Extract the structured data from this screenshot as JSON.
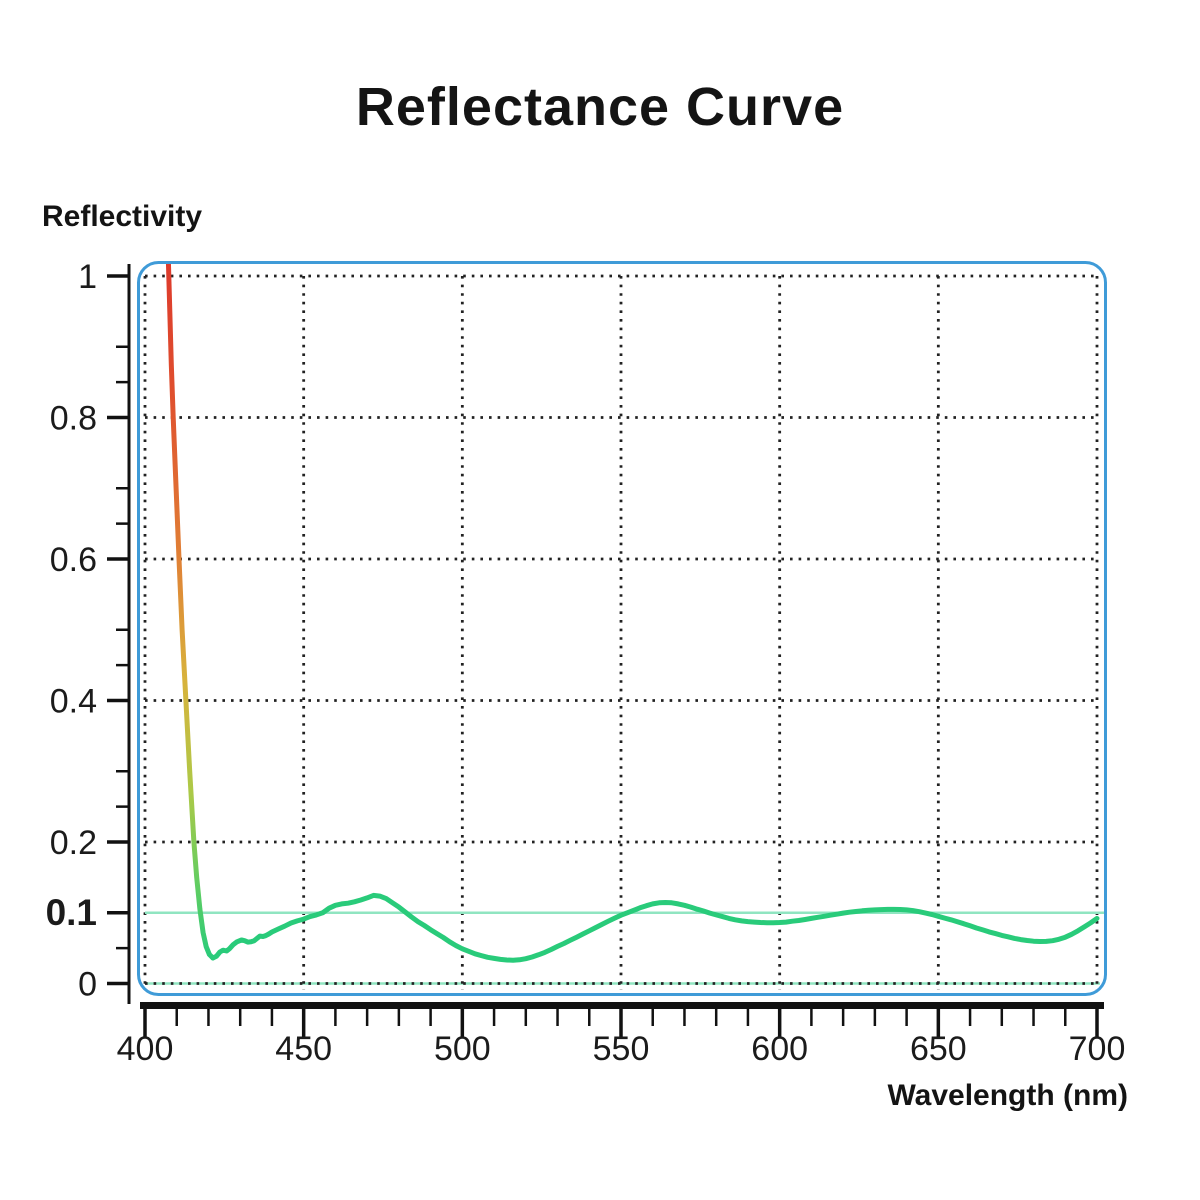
{
  "title": "Reflectance Curve",
  "y_axis_label": "Reflectivity",
  "x_axis_label": "Wavelength (nm)",
  "colors": {
    "border_blue": "#3f9bd8",
    "curve_green": "#29cb7a",
    "gradient_red": "#dd3a2c",
    "gradient_red_orange": "#df4e2e",
    "gradient_orange": "#e07f35",
    "gradient_yellow": "#d8b23c",
    "gradient_yellow_green": "#adc947",
    "gradient_light_green": "#5ecd62",
    "reference_line_green": "#90e5c1",
    "highlight_label_green": "#2dcf80",
    "grid_dot_black": "#222222",
    "axis_black": "#111111",
    "text_black": "#1b1b1b"
  },
  "chart_data": {
    "type": "line",
    "title": "Reflectance Curve",
    "xlabel": "Wavelength (nm)",
    "ylabel": "Reflectivity",
    "xlim": [
      400,
      700
    ],
    "ylim": [
      0,
      1
    ],
    "grid": "dotted",
    "x_ticks_major": [
      400,
      450,
      500,
      550,
      600,
      650,
      700
    ],
    "x_minor_step": 10,
    "y_ticks": [
      {
        "v": 0,
        "label": "0"
      },
      {
        "v": 0.1,
        "label": "0.1",
        "highlight": true
      },
      {
        "v": 0.2,
        "label": "0.2"
      },
      {
        "v": 0.4,
        "label": "0.4"
      },
      {
        "v": 0.6,
        "label": "0.6"
      },
      {
        "v": 0.8,
        "label": "0.8"
      },
      {
        "v": 1,
        "label": "1"
      }
    ],
    "y_gridlines": [
      0,
      0.2,
      0.4,
      0.6,
      0.8,
      1
    ],
    "y_minor_step": 0.05,
    "reference_lines": [
      {
        "y": 0.1
      },
      {
        "y": 0
      }
    ],
    "gradient_until_nm": 421.4,
    "series": [
      {
        "name": "reflectance",
        "points": [
          [
            407.3,
            1.03
          ],
          [
            407.8,
            0.95
          ],
          [
            408.3,
            0.875
          ],
          [
            408.9,
            0.8
          ],
          [
            409.8,
            0.7
          ],
          [
            410.7,
            0.6
          ],
          [
            411.7,
            0.5
          ],
          [
            412.9,
            0.4
          ],
          [
            414.1,
            0.3
          ],
          [
            415.4,
            0.2
          ],
          [
            416.3,
            0.15
          ],
          [
            417.3,
            0.105
          ],
          [
            418.3,
            0.072
          ],
          [
            419.3,
            0.052
          ],
          [
            420.3,
            0.041
          ],
          [
            421.4,
            0.036
          ],
          [
            422.5,
            0.0385
          ],
          [
            423.6,
            0.0445
          ],
          [
            424.6,
            0.047
          ],
          [
            425.7,
            0.046
          ],
          [
            426.6,
            0.049
          ],
          [
            427.7,
            0.0545
          ],
          [
            429,
            0.059
          ],
          [
            430.4,
            0.0615
          ],
          [
            431.4,
            0.0605
          ],
          [
            432.4,
            0.0585
          ],
          [
            433.4,
            0.059
          ],
          [
            434.4,
            0.0605
          ],
          [
            435.4,
            0.064
          ],
          [
            436.2,
            0.067
          ],
          [
            437.2,
            0.0665
          ],
          [
            438,
            0.0675
          ],
          [
            439,
            0.07
          ],
          [
            440,
            0.0728
          ],
          [
            442,
            0.077
          ],
          [
            444,
            0.081
          ],
          [
            446,
            0.0855
          ],
          [
            448,
            0.0885
          ],
          [
            450,
            0.091
          ],
          [
            452,
            0.0945
          ],
          [
            454,
            0.097
          ],
          [
            456,
            0.1
          ],
          [
            458,
            0.1065
          ],
          [
            460,
            0.1105
          ],
          [
            462,
            0.1125
          ],
          [
            464,
            0.1135
          ],
          [
            466,
            0.1155
          ],
          [
            468,
            0.118
          ],
          [
            470,
            0.121
          ],
          [
            472,
            0.1245
          ],
          [
            474,
            0.1235
          ],
          [
            476,
            0.12
          ],
          [
            478,
            0.114
          ],
          [
            480,
            0.108
          ],
          [
            482,
            0.101
          ],
          [
            484,
            0.094
          ],
          [
            486,
            0.0875
          ],
          [
            488,
            0.082
          ],
          [
            490,
            0.076
          ],
          [
            492,
            0.0705
          ],
          [
            494,
            0.065
          ],
          [
            496,
            0.059
          ],
          [
            498,
            0.0535
          ],
          [
            500,
            0.049
          ],
          [
            502,
            0.0455
          ],
          [
            504,
            0.042
          ],
          [
            506,
            0.0395
          ],
          [
            508,
            0.037
          ],
          [
            510,
            0.0355
          ],
          [
            512,
            0.034
          ],
          [
            514,
            0.0332
          ],
          [
            516,
            0.033
          ],
          [
            518,
            0.0335
          ],
          [
            520,
            0.035
          ],
          [
            522,
            0.0375
          ],
          [
            524,
            0.0405
          ],
          [
            526,
            0.044
          ],
          [
            528,
            0.048
          ],
          [
            530,
            0.0525
          ],
          [
            532,
            0.0565
          ],
          [
            534,
            0.061
          ],
          [
            536,
            0.0655
          ],
          [
            538,
            0.07
          ],
          [
            540,
            0.0745
          ],
          [
            542,
            0.079
          ],
          [
            544,
            0.0835
          ],
          [
            546,
            0.088
          ],
          [
            548,
            0.0925
          ],
          [
            550,
            0.0965
          ],
          [
            552,
            0.1
          ],
          [
            554,
            0.1035
          ],
          [
            556,
            0.107
          ],
          [
            558,
            0.11
          ],
          [
            560,
            0.1125
          ],
          [
            562,
            0.114
          ],
          [
            564,
            0.1145
          ],
          [
            566,
            0.114
          ],
          [
            568,
            0.1125
          ],
          [
            570,
            0.1105
          ],
          [
            572,
            0.108
          ],
          [
            574,
            0.105
          ],
          [
            576,
            0.1025
          ],
          [
            578,
            0.0995
          ],
          [
            580,
            0.097
          ],
          [
            582,
            0.0945
          ],
          [
            584,
            0.092
          ],
          [
            586,
            0.09
          ],
          [
            588,
            0.0885
          ],
          [
            590,
            0.0875
          ],
          [
            592,
            0.0868
          ],
          [
            594,
            0.0862
          ],
          [
            596,
            0.086
          ],
          [
            598,
            0.086
          ],
          [
            600,
            0.0862
          ],
          [
            602,
            0.0868
          ],
          [
            604,
            0.088
          ],
          [
            606,
            0.089
          ],
          [
            608,
            0.0905
          ],
          [
            610,
            0.092
          ],
          [
            612,
            0.0935
          ],
          [
            614,
            0.095
          ],
          [
            616,
            0.0965
          ],
          [
            618,
            0.098
          ],
          [
            620,
            0.0995
          ],
          [
            622,
            0.1008
          ],
          [
            624,
            0.1018
          ],
          [
            626,
            0.1028
          ],
          [
            628,
            0.1035
          ],
          [
            630,
            0.104
          ],
          [
            632,
            0.1045
          ],
          [
            634,
            0.1048
          ],
          [
            636,
            0.1048
          ],
          [
            638,
            0.1046
          ],
          [
            640,
            0.104
          ],
          [
            642,
            0.103
          ],
          [
            644,
            0.1015
          ],
          [
            646,
            0.0995
          ],
          [
            648,
            0.0975
          ],
          [
            650,
            0.095
          ],
          [
            652,
            0.0925
          ],
          [
            654,
            0.09
          ],
          [
            656,
            0.0872
          ],
          [
            658,
            0.0845
          ],
          [
            660,
            0.0815
          ],
          [
            662,
            0.0785
          ],
          [
            664,
            0.0758
          ],
          [
            666,
            0.073
          ],
          [
            668,
            0.0705
          ],
          [
            670,
            0.068
          ],
          [
            672,
            0.066
          ],
          [
            674,
            0.0638
          ],
          [
            676,
            0.062
          ],
          [
            678,
            0.0608
          ],
          [
            680,
            0.0598
          ],
          [
            682,
            0.0594
          ],
          [
            684,
            0.0595
          ],
          [
            686,
            0.0605
          ],
          [
            688,
            0.0625
          ],
          [
            690,
            0.0655
          ],
          [
            692,
            0.0695
          ],
          [
            694,
            0.0745
          ],
          [
            696,
            0.08
          ],
          [
            698,
            0.0858
          ],
          [
            700,
            0.092
          ]
        ]
      }
    ]
  }
}
